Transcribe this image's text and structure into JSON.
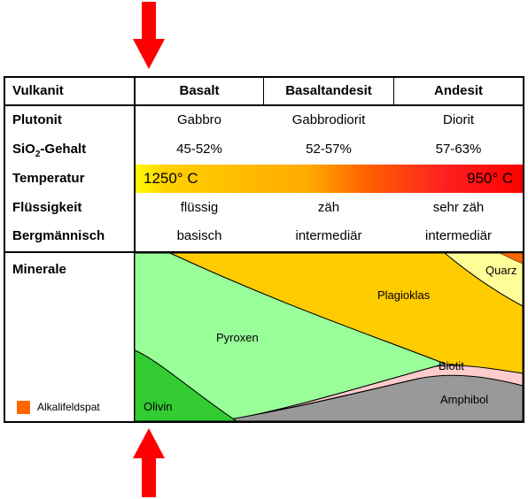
{
  "columns": {
    "rowhead": "Vulkanit",
    "col1": "Basalt",
    "col2": "Basaltandesit",
    "col3": "Andesit"
  },
  "rows": {
    "plutonit": {
      "label": "Plutonit",
      "values": [
        "Gabbro",
        "Gabbrodiorit",
        "Diorit"
      ]
    },
    "sio2": {
      "label_main": "SiO",
      "label_sub": "2",
      "label_rest": "-Gehalt",
      "values": [
        "45-52%",
        "52-57%",
        "57-63%"
      ]
    },
    "temperatur": {
      "label": "Temperatur",
      "high": "1250° C",
      "low": "950° C"
    },
    "fluessigkeit": {
      "label": "Flüssigkeit",
      "values": [
        "flüssig",
        "zäh",
        "sehr zäh"
      ]
    },
    "bergmaennisch": {
      "label": "Bergmännisch",
      "values": [
        "basisch",
        "intermediär",
        "intermediär"
      ]
    }
  },
  "minerals": {
    "title": "Minerale",
    "legend": {
      "label": "Alkalifeldspat",
      "color": "#ff6600"
    },
    "names": {
      "olivin": "Olivin",
      "pyroxen": "Pyroxen",
      "plagioklas": "Plagioklas",
      "quarz": "Quarz",
      "biotit": "Biotit",
      "amphibol": "Amphibol"
    },
    "colors": {
      "olivin": "#33cc33",
      "pyroxen": "#99ff99",
      "plagioklas": "#ffcc00",
      "quarz": "#ffff99",
      "alkalifeldspat": "#ff6600",
      "biotit": "#ffcccc",
      "amphibol": "#999999"
    }
  },
  "arrows": {
    "color": "#ff0000"
  }
}
